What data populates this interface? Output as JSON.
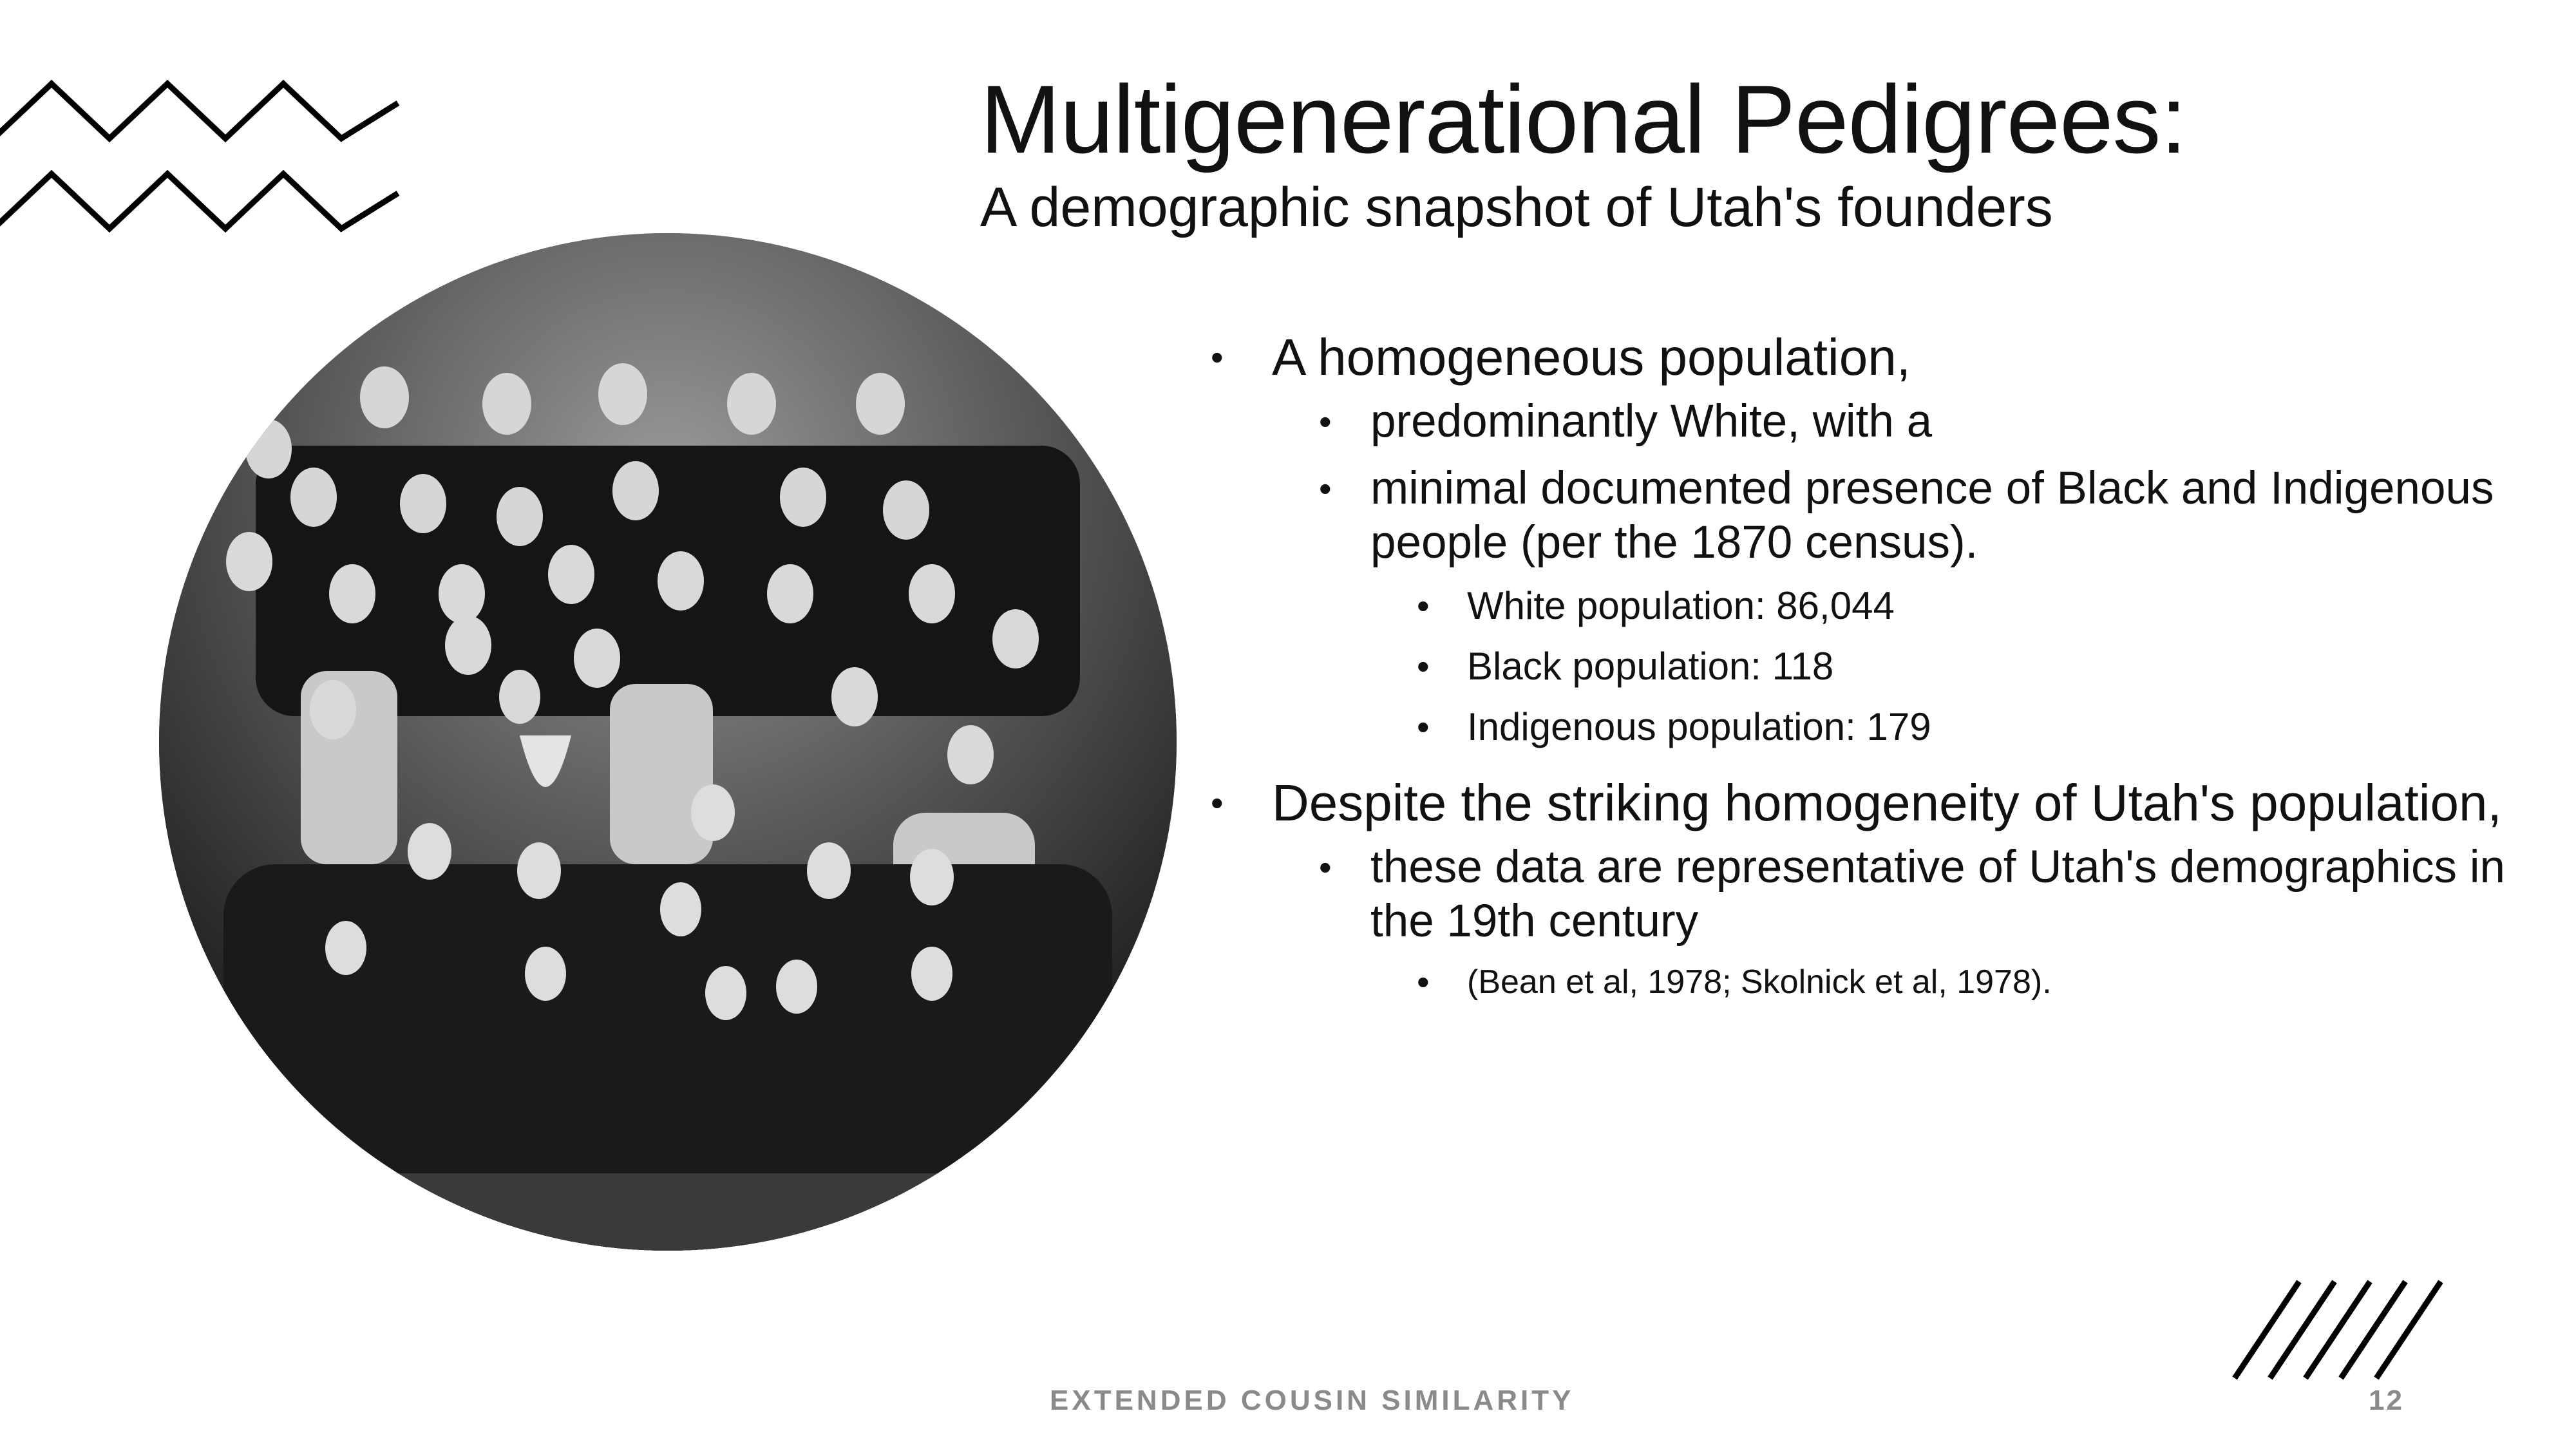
{
  "slide": {
    "title": "Multigenerational Pedigrees:",
    "subtitle": "A demographic snapshot of Utah's founders",
    "photo_icon": "family-group-photo",
    "bullets": {
      "b1": "A homogeneous population,",
      "b1_1": "predominantly White, with a",
      "b1_2_line1": "minimal documented presence of Black and Indigenous",
      "b1_2_line2": "people (per the 1870 census).",
      "b1_2_1": "White population: 86,044",
      "b1_2_2": "Black population: 118",
      "b1_2_3": "Indigenous population: 179",
      "b2": "Despite the striking homogeneity of Utah's population,",
      "b2_1_line1": "these data are representative of Utah's demographics in",
      "b2_1_line2": "the 19th century",
      "b2_1_1": "(Bean et al, 1978; Skolnick et al, 1978)."
    },
    "footer": "EXTENDED COUSIN SIMILARITY",
    "page_number": "12"
  },
  "colors": {
    "text": "#111111",
    "footer": "#8a8a8a",
    "background": "#ffffff"
  }
}
